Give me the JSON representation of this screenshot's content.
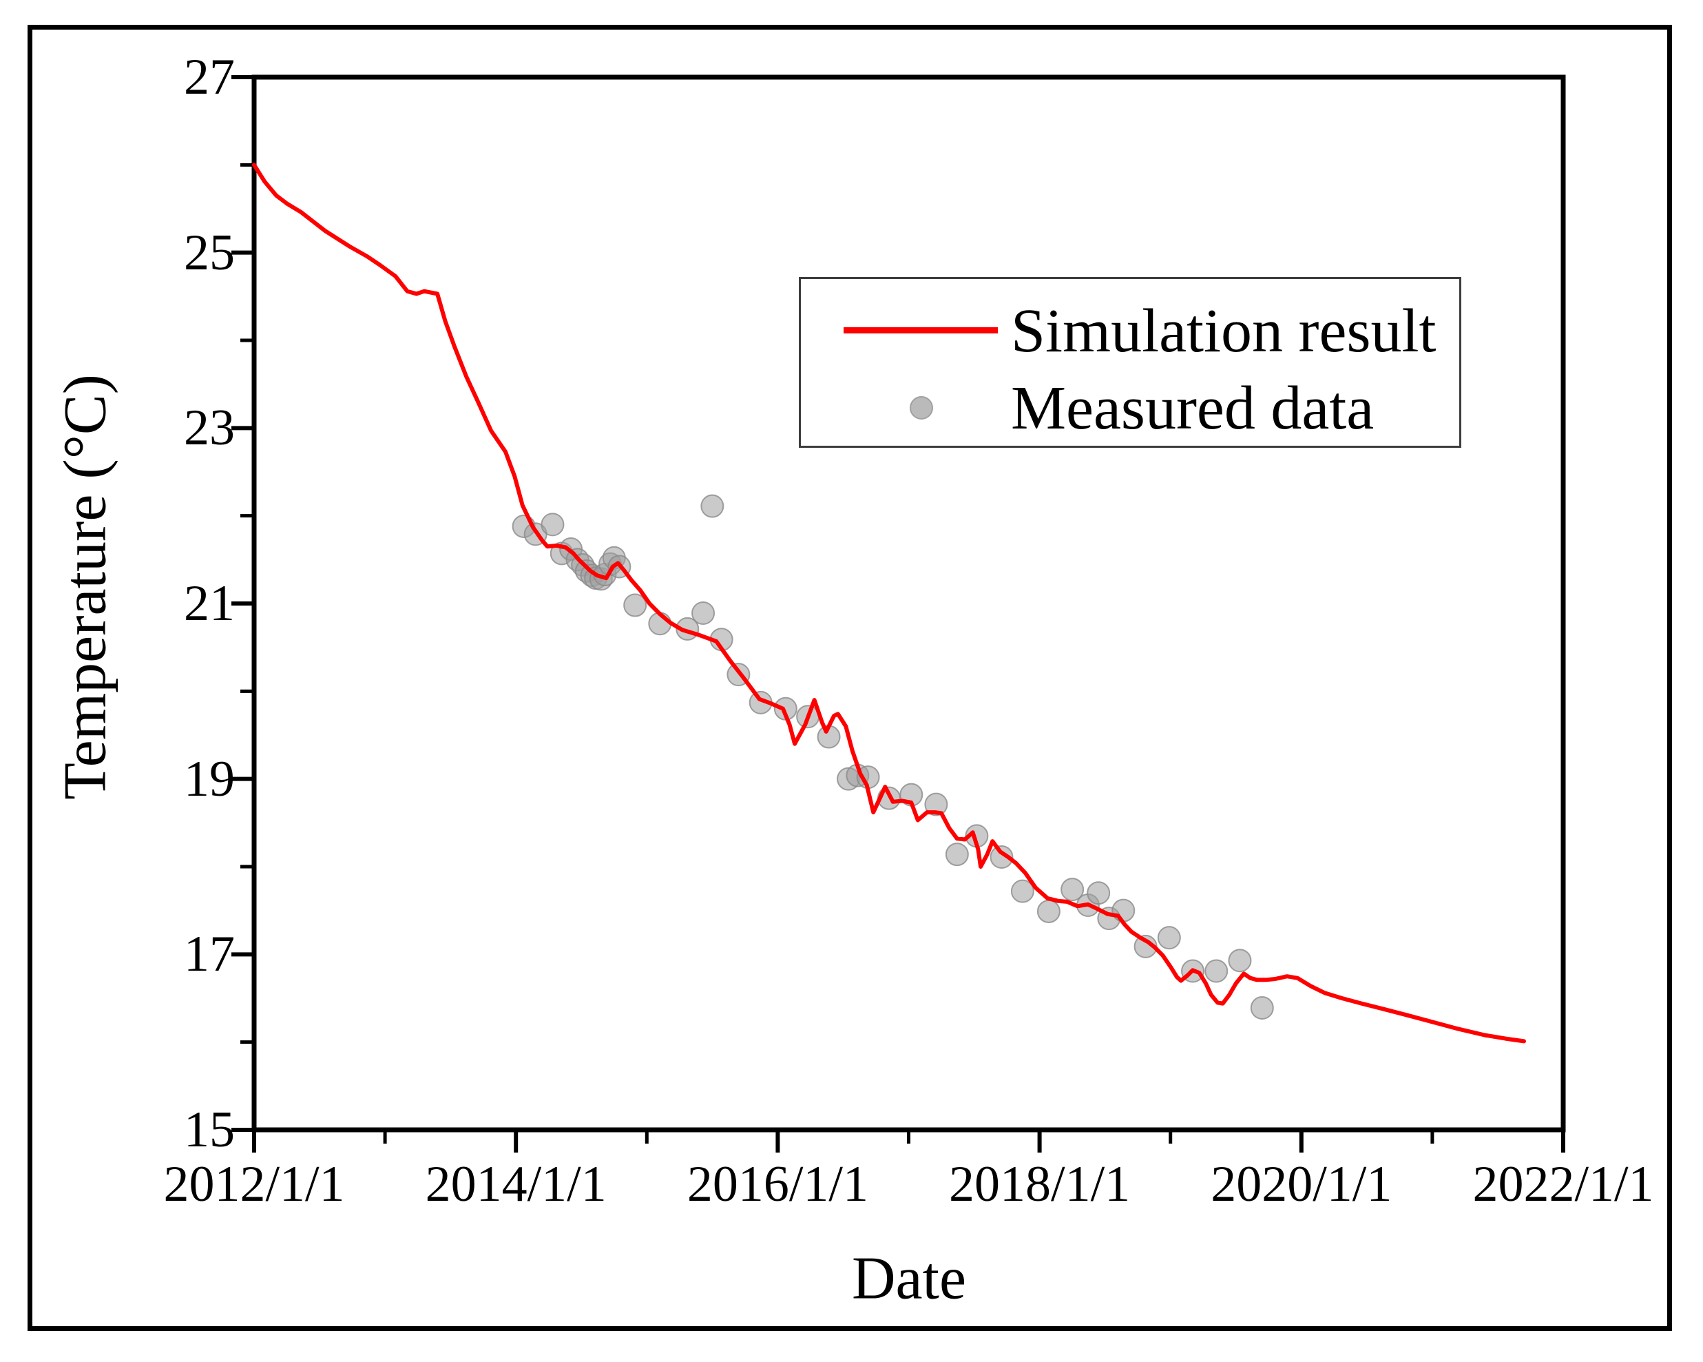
{
  "figure": {
    "background": "#ffffff",
    "border_color": "#000000"
  },
  "chart_data": {
    "type": "line",
    "xlabel": "Date",
    "ylabel": "Temperature (°C)",
    "grid": false,
    "legend_position": "upper-right-inside",
    "x_axis": {
      "min": 2012,
      "max": 2022,
      "major_ticks": [
        2012,
        2014,
        2016,
        2018,
        2020,
        2022
      ],
      "major_tick_labels": [
        "2012/1/1",
        "2014/1/1",
        "2016/1/1",
        "2018/1/1",
        "2020/1/1",
        "2022/1/1"
      ],
      "minor_ticks": [
        2013,
        2015,
        2017,
        2019,
        2021
      ]
    },
    "y_axis": {
      "min": 15,
      "max": 27,
      "major_ticks": [
        27,
        25,
        23,
        21,
        19,
        17,
        15
      ],
      "minor_ticks": [
        26,
        24,
        22,
        20,
        18,
        16
      ]
    },
    "legend": {
      "entries": [
        {
          "label": "Simulation result",
          "type": "line",
          "color": "#ff0000"
        },
        {
          "label": "Measured data",
          "type": "dot",
          "color": "#b3b3b3"
        }
      ]
    },
    "series": [
      {
        "name": "Simulation result",
        "type": "line",
        "color": "#ff0000",
        "points": [
          [
            2012.0,
            26.0
          ],
          [
            2012.08,
            25.81
          ],
          [
            2012.17,
            25.65
          ],
          [
            2012.25,
            25.56
          ],
          [
            2012.36,
            25.46
          ],
          [
            2012.54,
            25.25
          ],
          [
            2012.73,
            25.07
          ],
          [
            2012.86,
            24.96
          ],
          [
            2012.96,
            24.86
          ],
          [
            2013.08,
            24.73
          ],
          [
            2013.17,
            24.56
          ],
          [
            2013.24,
            24.53
          ],
          [
            2013.3,
            24.56
          ],
          [
            2013.4,
            24.53
          ],
          [
            2013.46,
            24.22
          ],
          [
            2013.53,
            23.93
          ],
          [
            2013.62,
            23.59
          ],
          [
            2013.71,
            23.3
          ],
          [
            2013.81,
            22.97
          ],
          [
            2013.92,
            22.73
          ],
          [
            2013.99,
            22.45
          ],
          [
            2014.05,
            22.12
          ],
          [
            2014.13,
            21.87
          ],
          [
            2014.2,
            21.72
          ],
          [
            2014.24,
            21.65
          ],
          [
            2014.31,
            21.66
          ],
          [
            2014.38,
            21.64
          ],
          [
            2014.44,
            21.57
          ],
          [
            2014.48,
            21.5
          ],
          [
            2014.57,
            21.37
          ],
          [
            2014.62,
            21.32
          ],
          [
            2014.69,
            21.29
          ],
          [
            2014.74,
            21.42
          ],
          [
            2014.78,
            21.46
          ],
          [
            2014.83,
            21.37
          ],
          [
            2014.88,
            21.27
          ],
          [
            2014.95,
            21.15
          ],
          [
            2015.02,
            21.0
          ],
          [
            2015.1,
            20.88
          ],
          [
            2015.18,
            20.78
          ],
          [
            2015.27,
            20.7
          ],
          [
            2015.4,
            20.64
          ],
          [
            2015.53,
            20.57
          ],
          [
            2015.64,
            20.34
          ],
          [
            2015.74,
            20.15
          ],
          [
            2015.86,
            19.91
          ],
          [
            2015.95,
            19.86
          ],
          [
            2016.04,
            19.8
          ],
          [
            2016.09,
            19.62
          ],
          [
            2016.13,
            19.4
          ],
          [
            2016.21,
            19.62
          ],
          [
            2016.28,
            19.9
          ],
          [
            2016.34,
            19.64
          ],
          [
            2016.37,
            19.54
          ],
          [
            2016.43,
            19.72
          ],
          [
            2016.46,
            19.74
          ],
          [
            2016.52,
            19.6
          ],
          [
            2016.57,
            19.32
          ],
          [
            2016.63,
            19.06
          ],
          [
            2016.68,
            18.93
          ],
          [
            2016.73,
            18.62
          ],
          [
            2016.78,
            18.78
          ],
          [
            2016.82,
            18.91
          ],
          [
            2016.88,
            18.74
          ],
          [
            2016.95,
            18.75
          ],
          [
            2017.02,
            18.73
          ],
          [
            2017.07,
            18.53
          ],
          [
            2017.14,
            18.62
          ],
          [
            2017.2,
            18.62
          ],
          [
            2017.25,
            18.61
          ],
          [
            2017.31,
            18.44
          ],
          [
            2017.37,
            18.32
          ],
          [
            2017.43,
            18.31
          ],
          [
            2017.49,
            18.39
          ],
          [
            2017.53,
            18.2
          ],
          [
            2017.55,
            18.0
          ],
          [
            2017.6,
            18.14
          ],
          [
            2017.64,
            18.29
          ],
          [
            2017.7,
            18.17
          ],
          [
            2017.76,
            18.11
          ],
          [
            2017.82,
            18.04
          ],
          [
            2017.89,
            17.93
          ],
          [
            2017.97,
            17.76
          ],
          [
            2018.06,
            17.64
          ],
          [
            2018.14,
            17.61
          ],
          [
            2018.21,
            17.6
          ],
          [
            2018.29,
            17.55
          ],
          [
            2018.37,
            17.57
          ],
          [
            2018.44,
            17.52
          ],
          [
            2018.52,
            17.46
          ],
          [
            2018.6,
            17.44
          ],
          [
            2018.65,
            17.34
          ],
          [
            2018.7,
            17.26
          ],
          [
            2018.77,
            17.19
          ],
          [
            2018.83,
            17.14
          ],
          [
            2018.88,
            17.08
          ],
          [
            2018.94,
            16.99
          ],
          [
            2019.0,
            16.86
          ],
          [
            2019.05,
            16.74
          ],
          [
            2019.08,
            16.7
          ],
          [
            2019.13,
            16.76
          ],
          [
            2019.17,
            16.82
          ],
          [
            2019.22,
            16.79
          ],
          [
            2019.27,
            16.67
          ],
          [
            2019.31,
            16.54
          ],
          [
            2019.36,
            16.45
          ],
          [
            2019.4,
            16.44
          ],
          [
            2019.45,
            16.54
          ],
          [
            2019.5,
            16.67
          ],
          [
            2019.56,
            16.78
          ],
          [
            2019.61,
            16.73
          ],
          [
            2019.66,
            16.71
          ],
          [
            2019.73,
            16.71
          ],
          [
            2019.8,
            16.72
          ],
          [
            2019.89,
            16.75
          ],
          [
            2019.97,
            16.73
          ],
          [
            2020.07,
            16.64
          ],
          [
            2020.18,
            16.56
          ],
          [
            2020.31,
            16.5
          ],
          [
            2020.46,
            16.44
          ],
          [
            2020.62,
            16.38
          ],
          [
            2020.8,
            16.31
          ],
          [
            2021.0,
            16.23
          ],
          [
            2021.2,
            16.15
          ],
          [
            2021.4,
            16.08
          ],
          [
            2021.56,
            16.04
          ],
          [
            2021.7,
            16.01
          ]
        ]
      },
      {
        "name": "Measured data",
        "type": "scatter",
        "color": "#b3b3b3",
        "points": [
          [
            2014.06,
            21.88
          ],
          [
            2014.15,
            21.79
          ],
          [
            2014.28,
            21.9
          ],
          [
            2014.35,
            21.57
          ],
          [
            2014.42,
            21.62
          ],
          [
            2014.47,
            21.5
          ],
          [
            2014.51,
            21.44
          ],
          [
            2014.54,
            21.37
          ],
          [
            2014.58,
            21.32
          ],
          [
            2014.61,
            21.29
          ],
          [
            2014.65,
            21.28
          ],
          [
            2014.68,
            21.33
          ],
          [
            2014.72,
            21.45
          ],
          [
            2014.75,
            21.52
          ],
          [
            2014.79,
            21.42
          ],
          [
            2014.91,
            20.98
          ],
          [
            2015.1,
            20.77
          ],
          [
            2015.31,
            20.71
          ],
          [
            2015.43,
            20.89
          ],
          [
            2015.5,
            22.11
          ],
          [
            2015.57,
            20.59
          ],
          [
            2015.7,
            20.19
          ],
          [
            2015.87,
            19.87
          ],
          [
            2016.06,
            19.8
          ],
          [
            2016.23,
            19.71
          ],
          [
            2016.39,
            19.48
          ],
          [
            2016.54,
            19.0
          ],
          [
            2016.61,
            19.04
          ],
          [
            2016.69,
            19.02
          ],
          [
            2016.85,
            18.78
          ],
          [
            2017.02,
            18.82
          ],
          [
            2017.21,
            18.71
          ],
          [
            2017.37,
            18.14
          ],
          [
            2017.52,
            18.35
          ],
          [
            2017.71,
            18.11
          ],
          [
            2017.87,
            17.72
          ],
          [
            2018.07,
            17.49
          ],
          [
            2018.25,
            17.74
          ],
          [
            2018.37,
            17.56
          ],
          [
            2018.45,
            17.7
          ],
          [
            2018.53,
            17.41
          ],
          [
            2018.64,
            17.5
          ],
          [
            2018.81,
            17.09
          ],
          [
            2018.99,
            17.19
          ],
          [
            2019.17,
            16.81
          ],
          [
            2019.35,
            16.81
          ],
          [
            2019.53,
            16.93
          ],
          [
            2019.7,
            16.39
          ]
        ]
      }
    ]
  }
}
